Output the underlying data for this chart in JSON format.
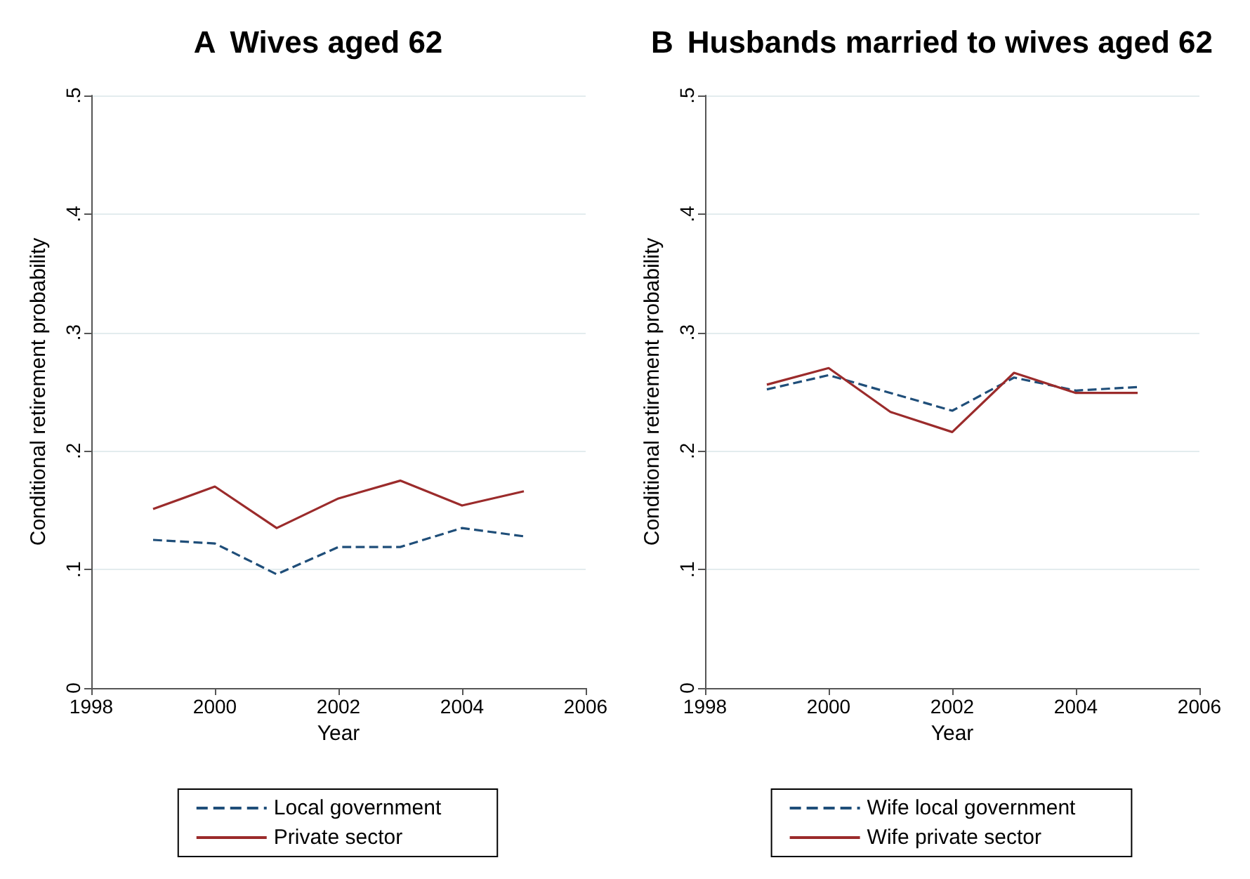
{
  "chart_data": [
    {
      "type": "line",
      "title": "A Wives aged 62",
      "xlabel": "Year",
      "ylabel": "Conditional retirement probability",
      "x": [
        1999,
        2000,
        2001,
        2002,
        2003,
        2004,
        2005
      ],
      "series": [
        {
          "name": "Local government",
          "color": "#1f4e79",
          "line_style": "dashed",
          "values": [
            0.125,
            0.122,
            0.096,
            0.119,
            0.119,
            0.135,
            0.128
          ]
        },
        {
          "name": "Private sector",
          "color": "#9b2b2b",
          "line_style": "solid",
          "values": [
            0.151,
            0.17,
            0.135,
            0.16,
            0.175,
            0.154,
            0.166
          ]
        }
      ],
      "xlim": [
        1998,
        2006
      ],
      "xticks": [
        1998,
        2000,
        2002,
        2004,
        2006
      ],
      "ylim": [
        0,
        0.5
      ],
      "yticks": [
        0,
        {
          "value": 0.1,
          "label": ".1"
        },
        {
          "value": 0.2,
          "label": ".2"
        },
        {
          "value": 0.3,
          "label": ".3"
        },
        {
          "value": 0.4,
          "label": ".4"
        },
        {
          "value": 0.5,
          "label": ".5"
        }
      ],
      "grid": "y",
      "legend": "bottom",
      "marker": "none"
    },
    {
      "type": "line",
      "title": "B Husbands married to wives aged 62",
      "xlabel": "Year",
      "ylabel": "Conditional retirement probability",
      "x": [
        1999,
        2000,
        2001,
        2002,
        2003,
        2004,
        2005
      ],
      "series": [
        {
          "name": "Wife local government",
          "color": "#1f4e79",
          "line_style": "dashed",
          "values": [
            0.252,
            0.264,
            0.249,
            0.234,
            0.262,
            0.251,
            0.254
          ]
        },
        {
          "name": "Wife private sector",
          "color": "#9b2b2b",
          "line_style": "solid",
          "values": [
            0.256,
            0.27,
            0.233,
            0.216,
            0.266,
            0.249,
            0.249
          ]
        }
      ],
      "xlim": [
        1998,
        2006
      ],
      "xticks": [
        1998,
        2000,
        2002,
        2004,
        2006
      ],
      "ylim": [
        0,
        0.5
      ],
      "yticks": [
        0,
        {
          "value": 0.1,
          "label": ".1"
        },
        {
          "value": 0.2,
          "label": ".2"
        },
        {
          "value": 0.3,
          "label": ".3"
        },
        {
          "value": 0.4,
          "label": ".4"
        },
        {
          "value": 0.5,
          "label": ".5"
        }
      ],
      "grid": "y",
      "legend": "bottom",
      "marker": "none"
    }
  ]
}
